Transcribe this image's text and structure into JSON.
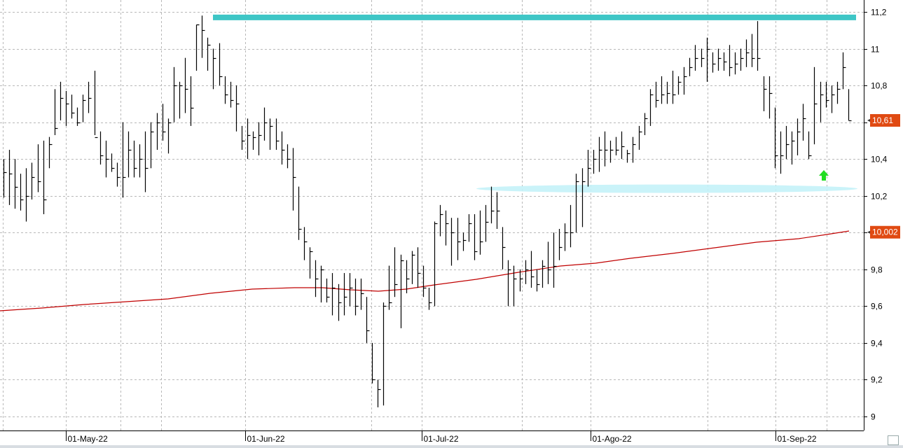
{
  "chart_data": {
    "type": "ohlc",
    "title": "",
    "xlabel": "",
    "ylabel": "",
    "ylim": [
      8.9,
      11.26
    ],
    "y_ticks": [
      "11,2",
      "11",
      "10,8",
      "10,6",
      "10,4",
      "10,2",
      "10",
      "9,8",
      "9,6",
      "9,4",
      "9,2",
      "9"
    ],
    "y_tick_values": [
      11.2,
      11.0,
      10.8,
      10.6,
      10.4,
      10.2,
      10.0,
      9.8,
      9.6,
      9.4,
      9.2,
      9.0
    ],
    "x_ticks": [
      "01-May-22",
      "01-Jun-22",
      "01-Jul-22",
      "01-Ago-22",
      "01-Sep-22"
    ],
    "grid": true,
    "last_price_label": "10,61",
    "moving_average_label": "10,002",
    "resistance_level": 11.17,
    "support_zone": 10.25,
    "bars": [
      {
        "h": 10.4,
        "l": 10.19,
        "c": 10.33
      },
      {
        "h": 10.45,
        "l": 10.15,
        "c": 10.32
      },
      {
        "h": 10.4,
        "l": 10.13,
        "c": 10.25
      },
      {
        "h": 10.32,
        "l": 10.12,
        "c": 10.18
      },
      {
        "h": 10.35,
        "l": 10.06,
        "c": 10.2
      },
      {
        "h": 10.38,
        "l": 10.18,
        "c": 10.3
      },
      {
        "h": 10.48,
        "l": 10.22,
        "c": 10.28
      },
      {
        "h": 10.5,
        "l": 10.1,
        "c": 10.18
      },
      {
        "h": 10.52,
        "l": 10.35,
        "c": 10.48
      },
      {
        "h": 10.78,
        "l": 10.53,
        "c": 10.57
      },
      {
        "h": 10.82,
        "l": 10.61,
        "c": 10.73
      },
      {
        "h": 10.77,
        "l": 10.58,
        "c": 10.7
      },
      {
        "h": 10.75,
        "l": 10.62,
        "c": 10.65
      },
      {
        "h": 10.68,
        "l": 10.58,
        "c": 10.6
      },
      {
        "h": 10.75,
        "l": 10.6,
        "c": 10.72
      },
      {
        "h": 10.82,
        "l": 10.65,
        "c": 10.73
      },
      {
        "h": 10.88,
        "l": 10.53,
        "c": 10.52
      },
      {
        "h": 10.55,
        "l": 10.37,
        "c": 10.42
      },
      {
        "h": 10.5,
        "l": 10.3,
        "c": 10.4
      },
      {
        "h": 10.43,
        "l": 10.33,
        "c": 10.35
      },
      {
        "h": 10.38,
        "l": 10.25,
        "c": 10.3
      },
      {
        "h": 10.6,
        "l": 10.19,
        "c": 10.3
      },
      {
        "h": 10.55,
        "l": 10.3,
        "c": 10.45
      },
      {
        "h": 10.5,
        "l": 10.3,
        "c": 10.35
      },
      {
        "h": 10.48,
        "l": 10.3,
        "c": 10.4
      },
      {
        "h": 10.55,
        "l": 10.22,
        "c": 10.35
      },
      {
        "h": 10.6,
        "l": 10.35,
        "c": 10.55
      },
      {
        "h": 10.65,
        "l": 10.45,
        "c": 10.6
      },
      {
        "h": 10.7,
        "l": 10.5,
        "c": 10.55
      },
      {
        "h": 10.62,
        "l": 10.43,
        "c": 10.6
      },
      {
        "h": 10.9,
        "l": 10.6,
        "c": 10.8
      },
      {
        "h": 10.82,
        "l": 10.62,
        "c": 10.8
      },
      {
        "h": 10.95,
        "l": 10.65,
        "c": 10.78
      },
      {
        "h": 10.85,
        "l": 10.58,
        "c": 10.68
      },
      {
        "h": 11.13,
        "l": 10.88,
        "c": 11.13
      },
      {
        "h": 11.18,
        "l": 10.95,
        "c": 11.1
      },
      {
        "h": 11.06,
        "l": 10.88,
        "c": 11.02
      },
      {
        "h": 11.0,
        "l": 10.78,
        "c": 10.95
      },
      {
        "h": 11.03,
        "l": 10.8,
        "c": 10.85
      },
      {
        "h": 10.85,
        "l": 10.7,
        "c": 10.75
      },
      {
        "h": 10.82,
        "l": 10.68,
        "c": 10.72
      },
      {
        "h": 10.8,
        "l": 10.55,
        "c": 10.7
      },
      {
        "h": 10.58,
        "l": 10.45,
        "c": 10.5
      },
      {
        "h": 10.62,
        "l": 10.4,
        "c": 10.53
      },
      {
        "h": 10.55,
        "l": 10.45,
        "c": 10.52
      },
      {
        "h": 10.6,
        "l": 10.42,
        "c": 10.53
      },
      {
        "h": 10.68,
        "l": 10.5,
        "c": 10.6
      },
      {
        "h": 10.62,
        "l": 10.45,
        "c": 10.58
      },
      {
        "h": 10.62,
        "l": 10.45,
        "c": 10.5
      },
      {
        "h": 10.55,
        "l": 10.37,
        "c": 10.45
      },
      {
        "h": 10.48,
        "l": 10.35,
        "c": 10.4
      },
      {
        "h": 10.46,
        "l": 10.12,
        "c": 10.3
      },
      {
        "h": 10.25,
        "l": 9.96,
        "c": 10.02
      },
      {
        "h": 10.03,
        "l": 9.85,
        "c": 9.95
      },
      {
        "h": 9.92,
        "l": 9.75,
        "c": 9.9
      },
      {
        "h": 9.85,
        "l": 9.65,
        "c": 9.75
      },
      {
        "h": 9.82,
        "l": 9.62,
        "c": 9.8
      },
      {
        "h": 9.75,
        "l": 9.62,
        "c": 9.65
      },
      {
        "h": 9.78,
        "l": 9.55,
        "c": 9.7
      },
      {
        "h": 9.72,
        "l": 9.52,
        "c": 9.62
      },
      {
        "h": 9.78,
        "l": 9.55,
        "c": 9.65
      },
      {
        "h": 9.78,
        "l": 9.6,
        "c": 9.7
      },
      {
        "h": 9.75,
        "l": 9.55,
        "c": 9.6
      },
      {
        "h": 9.75,
        "l": 9.58,
        "c": 9.67
      },
      {
        "h": 9.65,
        "l": 9.4,
        "c": 9.47
      },
      {
        "h": 9.4,
        "l": 9.18,
        "c": 9.2
      },
      {
        "h": 9.2,
        "l": 9.05,
        "c": 9.15
      },
      {
        "h": 9.62,
        "l": 9.06,
        "c": 9.6
      },
      {
        "h": 9.82,
        "l": 9.58,
        "c": 9.62
      },
      {
        "h": 9.92,
        "l": 9.65,
        "c": 9.72
      },
      {
        "h": 9.88,
        "l": 9.48,
        "c": 9.85
      },
      {
        "h": 9.85,
        "l": 9.67,
        "c": 9.75
      },
      {
        "h": 9.9,
        "l": 9.72,
        "c": 9.88
      },
      {
        "h": 9.92,
        "l": 9.7,
        "c": 9.78
      },
      {
        "h": 9.82,
        "l": 9.65,
        "c": 9.7
      },
      {
        "h": 9.7,
        "l": 9.58,
        "c": 9.62
      },
      {
        "h": 10.06,
        "l": 9.6,
        "c": 10.05
      },
      {
        "h": 10.15,
        "l": 9.98,
        "c": 10.1
      },
      {
        "h": 10.12,
        "l": 9.93,
        "c": 10.05
      },
      {
        "h": 10.08,
        "l": 9.82,
        "c": 10.0
      },
      {
        "h": 10.08,
        "l": 9.85,
        "c": 9.95
      },
      {
        "h": 10.0,
        "l": 9.9,
        "c": 9.96
      },
      {
        "h": 10.1,
        "l": 9.95,
        "c": 10.05
      },
      {
        "h": 10.1,
        "l": 9.85,
        "c": 9.9
      },
      {
        "h": 10.12,
        "l": 9.88,
        "c": 9.95
      },
      {
        "h": 10.15,
        "l": 9.95,
        "c": 10.06
      },
      {
        "h": 10.25,
        "l": 10.05,
        "c": 10.12
      },
      {
        "h": 10.22,
        "l": 10.02,
        "c": 10.12
      },
      {
        "h": 10.03,
        "l": 9.8,
        "c": 9.92
      },
      {
        "h": 9.85,
        "l": 9.6,
        "c": 9.8
      },
      {
        "h": 9.82,
        "l": 9.6,
        "c": 9.75
      },
      {
        "h": 9.8,
        "l": 9.68,
        "c": 9.75
      },
      {
        "h": 9.85,
        "l": 9.72,
        "c": 9.8
      },
      {
        "h": 9.9,
        "l": 9.7,
        "c": 9.76
      },
      {
        "h": 9.8,
        "l": 9.68,
        "c": 9.72
      },
      {
        "h": 9.85,
        "l": 9.7,
        "c": 9.82
      },
      {
        "h": 9.95,
        "l": 9.72,
        "c": 9.8
      },
      {
        "h": 10.0,
        "l": 9.7,
        "c": 9.82
      },
      {
        "h": 10.02,
        "l": 9.85,
        "c": 9.92
      },
      {
        "h": 10.05,
        "l": 9.9,
        "c": 10.0
      },
      {
        "h": 10.15,
        "l": 9.92,
        "c": 10.0
      },
      {
        "h": 10.32,
        "l": 10.0,
        "c": 10.28
      },
      {
        "h": 10.35,
        "l": 10.03,
        "c": 10.28
      },
      {
        "h": 10.45,
        "l": 10.25,
        "c": 10.35
      },
      {
        "h": 10.45,
        "l": 10.32,
        "c": 10.4
      },
      {
        "h": 10.52,
        "l": 10.33,
        "c": 10.45
      },
      {
        "h": 10.55,
        "l": 10.36,
        "c": 10.45
      },
      {
        "h": 10.5,
        "l": 10.38,
        "c": 10.45
      },
      {
        "h": 10.52,
        "l": 10.42,
        "c": 10.45
      },
      {
        "h": 10.55,
        "l": 10.4,
        "c": 10.47
      },
      {
        "h": 10.45,
        "l": 10.38,
        "c": 10.43
      },
      {
        "h": 10.52,
        "l": 10.38,
        "c": 10.48
      },
      {
        "h": 10.58,
        "l": 10.45,
        "c": 10.55
      },
      {
        "h": 10.65,
        "l": 10.53,
        "c": 10.62
      },
      {
        "h": 10.78,
        "l": 10.58,
        "c": 10.75
      },
      {
        "h": 10.82,
        "l": 10.68,
        "c": 10.72
      },
      {
        "h": 10.85,
        "l": 10.7,
        "c": 10.75
      },
      {
        "h": 10.82,
        "l": 10.7,
        "c": 10.76
      },
      {
        "h": 10.88,
        "l": 10.7,
        "c": 10.75
      },
      {
        "h": 10.85,
        "l": 10.75,
        "c": 10.82
      },
      {
        "h": 10.9,
        "l": 10.75,
        "c": 10.85
      },
      {
        "h": 10.95,
        "l": 10.85,
        "c": 10.9
      },
      {
        "h": 11.02,
        "l": 10.88,
        "c": 10.95
      },
      {
        "h": 11.0,
        "l": 10.9,
        "c": 10.95
      },
      {
        "h": 11.06,
        "l": 10.82,
        "c": 11.0
      },
      {
        "h": 10.98,
        "l": 10.87,
        "c": 10.92
      },
      {
        "h": 11.0,
        "l": 10.88,
        "c": 10.95
      },
      {
        "h": 10.98,
        "l": 10.88,
        "c": 10.93
      },
      {
        "h": 11.02,
        "l": 10.85,
        "c": 10.9
      },
      {
        "h": 10.98,
        "l": 10.86,
        "c": 10.92
      },
      {
        "h": 11.0,
        "l": 10.88,
        "c": 10.95
      },
      {
        "h": 11.05,
        "l": 10.9,
        "c": 10.98
      },
      {
        "h": 11.08,
        "l": 10.9,
        "c": 10.95
      },
      {
        "h": 11.15,
        "l": 10.88,
        "c": 10.95
      },
      {
        "h": 10.85,
        "l": 10.66,
        "c": 10.78
      },
      {
        "h": 10.85,
        "l": 10.62,
        "c": 10.76
      },
      {
        "h": 10.68,
        "l": 10.35,
        "c": 10.42
      },
      {
        "h": 10.55,
        "l": 10.32,
        "c": 10.42
      },
      {
        "h": 10.58,
        "l": 10.4,
        "c": 10.48
      },
      {
        "h": 10.55,
        "l": 10.37,
        "c": 10.5
      },
      {
        "h": 10.62,
        "l": 10.42,
        "c": 10.55
      },
      {
        "h": 10.7,
        "l": 10.5,
        "c": 10.62
      },
      {
        "h": 10.55,
        "l": 10.4,
        "c": 10.42
      },
      {
        "h": 10.9,
        "l": 10.48,
        "c": 10.7
      },
      {
        "h": 10.82,
        "l": 10.6,
        "c": 10.75
      },
      {
        "h": 10.82,
        "l": 10.68,
        "c": 10.72
      },
      {
        "h": 10.8,
        "l": 10.65,
        "c": 10.75
      },
      {
        "h": 10.82,
        "l": 10.7,
        "c": 10.78
      },
      {
        "h": 10.98,
        "l": 10.78,
        "c": 10.9
      },
      {
        "h": 10.78,
        "l": 10.61,
        "c": 10.61
      }
    ]
  }
}
